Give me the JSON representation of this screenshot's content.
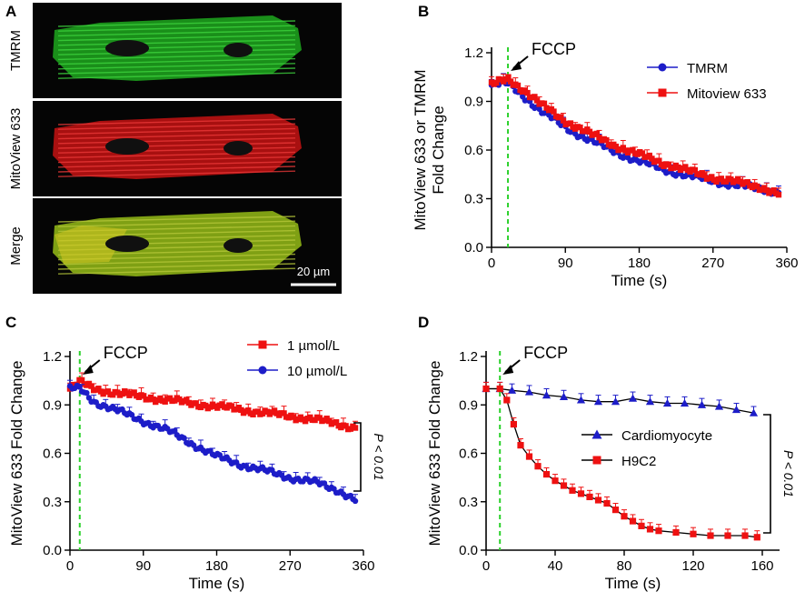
{
  "colors": {
    "green": "#22c22a",
    "red": "#ee1111",
    "blue": "#1d1dc8",
    "marker_fccp": "#2bd12b",
    "black": "#000000"
  },
  "panel_a": {
    "label": "A",
    "rows": [
      {
        "label": "TMRM",
        "stain": "green-cell-image"
      },
      {
        "label": "MitoView 633",
        "stain": "red-cell-image"
      },
      {
        "label": "Merge",
        "stain": "merge-cell-image"
      }
    ],
    "scale_bar": "20 µm"
  },
  "chart_data": [
    {
      "panel": "B",
      "type": "line",
      "title": "",
      "xlabel": "Time (s)",
      "ylabel": [
        "MitoView 633 or TMRM",
        "Fold Change"
      ],
      "xlim": [
        0,
        360
      ],
      "ylim": [
        0,
        1.2
      ],
      "xticks": [
        "0",
        "90",
        "180",
        "270",
        "360"
      ],
      "yticks": [
        "0.0",
        "0.3",
        "0.6",
        "0.9",
        "1.2"
      ],
      "annotation": {
        "text": "FCCP",
        "x": 20
      },
      "legend": "top-right",
      "series": [
        {
          "name": "TMRM",
          "color": "#1d1dc8",
          "marker": "circle",
          "x": [
            0,
            20,
            40,
            60,
            90,
            120,
            150,
            180,
            210,
            240,
            270,
            300,
            330,
            350
          ],
          "y": [
            1.0,
            1.01,
            0.93,
            0.84,
            0.74,
            0.66,
            0.59,
            0.53,
            0.48,
            0.44,
            0.41,
            0.38,
            0.36,
            0.34
          ]
        },
        {
          "name": "Mitoview 633",
          "color": "#ee1111",
          "marker": "square",
          "x": [
            0,
            20,
            40,
            60,
            90,
            120,
            150,
            180,
            210,
            240,
            270,
            300,
            330,
            350
          ],
          "y": [
            1.0,
            1.04,
            0.97,
            0.88,
            0.78,
            0.7,
            0.63,
            0.57,
            0.52,
            0.47,
            0.43,
            0.4,
            0.37,
            0.33
          ]
        }
      ]
    },
    {
      "panel": "C",
      "type": "line",
      "title": "",
      "xlabel": "Time (s)",
      "ylabel": [
        "MitoView 633 Fold Change"
      ],
      "xlim": [
        0,
        360
      ],
      "ylim": [
        0,
        1.2
      ],
      "xticks": [
        "0",
        "90",
        "180",
        "270",
        "360"
      ],
      "yticks": [
        "0.0",
        "0.3",
        "0.6",
        "0.9",
        "1.2"
      ],
      "annotation": {
        "text": "FCCP",
        "x": 12
      },
      "bracket": "P < 0.01",
      "legend": "top-right",
      "series": [
        {
          "name": "1 µmol/L",
          "color": "#ee1111",
          "marker": "square",
          "x": [
            0,
            12,
            30,
            60,
            90,
            120,
            150,
            180,
            210,
            240,
            270,
            300,
            330,
            350
          ],
          "y": [
            1.0,
            1.04,
            1.0,
            0.97,
            0.95,
            0.93,
            0.91,
            0.89,
            0.87,
            0.85,
            0.83,
            0.81,
            0.78,
            0.76
          ]
        },
        {
          "name": "10 µmol/L",
          "color": "#1d1dc8",
          "marker": "circle",
          "x": [
            0,
            12,
            30,
            60,
            90,
            120,
            150,
            180,
            210,
            240,
            270,
            300,
            330,
            350
          ],
          "y": [
            1.0,
            1.0,
            0.92,
            0.86,
            0.8,
            0.74,
            0.66,
            0.58,
            0.53,
            0.49,
            0.45,
            0.42,
            0.37,
            0.31
          ]
        }
      ]
    },
    {
      "panel": "D",
      "type": "line",
      "title": "",
      "xlabel": "Time (s)",
      "ylabel": [
        "MitoView 633 Fold Change"
      ],
      "xlim": [
        0,
        170
      ],
      "ylim": [
        0,
        1.2
      ],
      "xticks": [
        "0",
        "40",
        "80",
        "120",
        "160"
      ],
      "yticks": [
        "0.0",
        "0.3",
        "0.6",
        "0.9",
        "1.2"
      ],
      "annotation": {
        "text": "FCCP",
        "x": 8
      },
      "bracket": "P < 0.01",
      "legend": "center-right",
      "series": [
        {
          "name": "Cardiomyocyte",
          "color": "#1d1dc8",
          "marker": "triangle",
          "x": [
            0,
            8,
            15,
            25,
            35,
            45,
            55,
            65,
            75,
            85,
            95,
            105,
            115,
            125,
            135,
            145,
            155
          ],
          "y": [
            1.0,
            1.0,
            0.99,
            0.98,
            0.96,
            0.95,
            0.93,
            0.92,
            0.92,
            0.94,
            0.92,
            0.91,
            0.91,
            0.9,
            0.89,
            0.87,
            0.85
          ]
        },
        {
          "name": "H9C2",
          "color": "#ee1111",
          "marker": "square",
          "x": [
            0,
            8,
            12,
            16,
            20,
            25,
            30,
            35,
            40,
            45,
            50,
            55,
            60,
            65,
            70,
            75,
            80,
            85,
            90,
            95,
            100,
            110,
            120,
            130,
            140,
            150,
            157
          ],
          "y": [
            1.0,
            1.0,
            0.93,
            0.78,
            0.65,
            0.58,
            0.52,
            0.47,
            0.43,
            0.4,
            0.37,
            0.35,
            0.33,
            0.31,
            0.29,
            0.25,
            0.21,
            0.18,
            0.15,
            0.13,
            0.12,
            0.11,
            0.1,
            0.09,
            0.09,
            0.09,
            0.08
          ]
        }
      ]
    }
  ]
}
